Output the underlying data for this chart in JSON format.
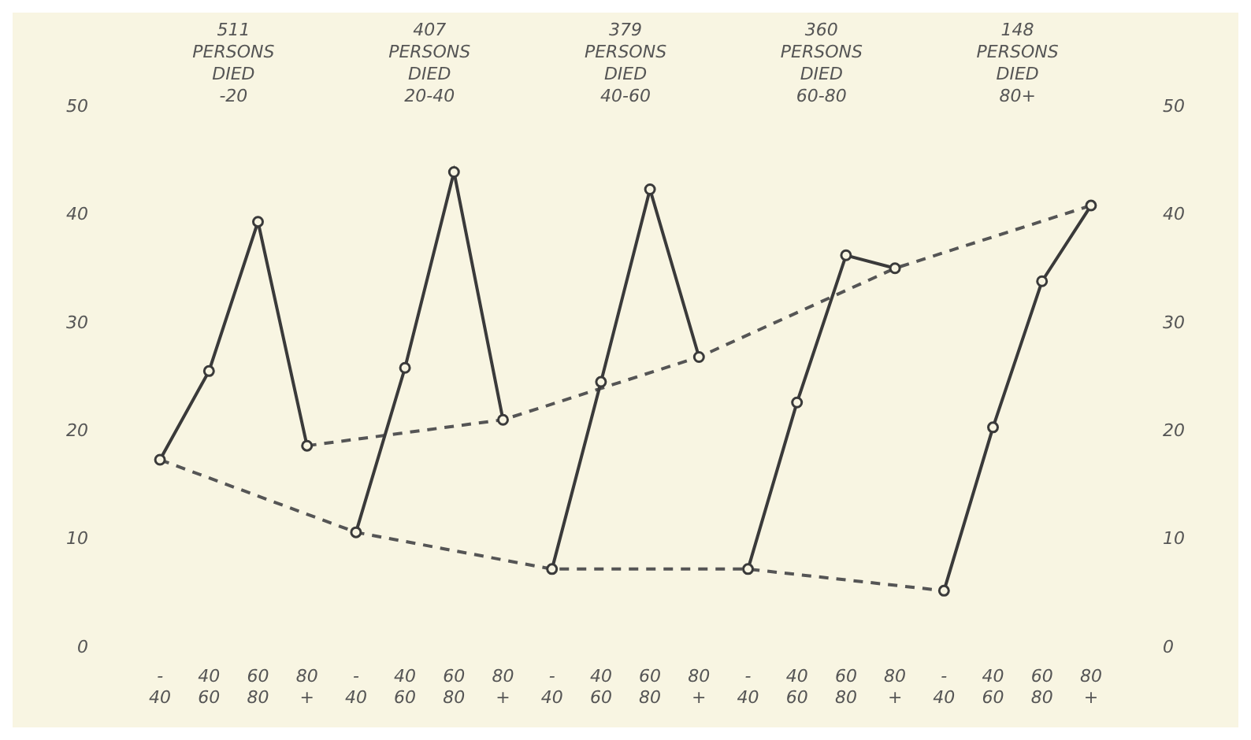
{
  "chart_data": {
    "type": "line",
    "categories": [
      "- 40",
      "40 60",
      "60 80",
      "80 +",
      "- 40",
      "40 60",
      "60 80",
      "80 +",
      "- 40",
      "40 60",
      "60 80",
      "80 +",
      "- 40",
      "40 60",
      "60 80",
      "80 +",
      "- 40",
      "40 60",
      "60 80",
      "80 +"
    ],
    "series": [
      {
        "color": "#3a3a3a",
        "line_style": "solid",
        "marker": "circle",
        "values": [
          17.4,
          25.6,
          39.4,
          18.7,
          null,
          null,
          null,
          null,
          null,
          null,
          null,
          null,
          null,
          null,
          null,
          null,
          null,
          null,
          null,
          null
        ]
      },
      {
        "color": "#3a3a3a",
        "line_style": "solid",
        "marker": "circle",
        "values": [
          null,
          null,
          null,
          null,
          10.7,
          25.9,
          44,
          21.1,
          null,
          null,
          null,
          null,
          null,
          null,
          null,
          null,
          null,
          null,
          null,
          null
        ]
      },
      {
        "color": "#3a3a3a",
        "line_style": "solid",
        "marker": "circle",
        "values": [
          null,
          null,
          null,
          null,
          null,
          null,
          null,
          null,
          7.3,
          24.6,
          42.4,
          26.9,
          null,
          null,
          null,
          null,
          null,
          null,
          null,
          null
        ]
      },
      {
        "color": "#3a3a3a",
        "line_style": "solid",
        "marker": "circle",
        "values": [
          null,
          null,
          null,
          null,
          null,
          null,
          null,
          null,
          null,
          null,
          null,
          null,
          7.3,
          22.7,
          36.3,
          35.1,
          null,
          null,
          null,
          null
        ]
      },
      {
        "color": "#3a3a3a",
        "line_style": "solid",
        "marker": "circle",
        "values": [
          null,
          null,
          null,
          null,
          null,
          null,
          null,
          null,
          null,
          null,
          null,
          null,
          null,
          null,
          null,
          null,
          5.3,
          20.4,
          33.9,
          40.9
        ]
      },
      {
        "color": "#555555",
        "line_style": "dashed",
        "marker": "none",
        "values": [
          17.4,
          null,
          null,
          null,
          10.7,
          null,
          null,
          null,
          7.3,
          null,
          null,
          null,
          7.3,
          null,
          null,
          null,
          5.3,
          null,
          null,
          null
        ]
      },
      {
        "color": "#555555",
        "line_style": "dashed",
        "marker": "none",
        "values": [
          null,
          null,
          null,
          18.7,
          null,
          null,
          null,
          21.1,
          null,
          null,
          null,
          26.9,
          null,
          null,
          null,
          35.1,
          null,
          null,
          null,
          40.9
        ]
      }
    ],
    "ylim": [
      0,
      50
    ],
    "yticks": [
      0,
      10,
      20,
      30,
      40,
      50
    ],
    "y2lim": [
      0,
      50
    ],
    "y2ticks": [
      0,
      10,
      20,
      30,
      40,
      50
    ],
    "annotations": [
      "511\nPERSONS\nDIED\n-20",
      "407\nPERSONS\nDIED\n20-40",
      "379\nPERSONS\nDIED\n40-60",
      "360\nPERSONS\nDIED\n60-80",
      "148\nPERSONS\nDIED\n80+"
    ],
    "grid": false,
    "legend": false
  }
}
